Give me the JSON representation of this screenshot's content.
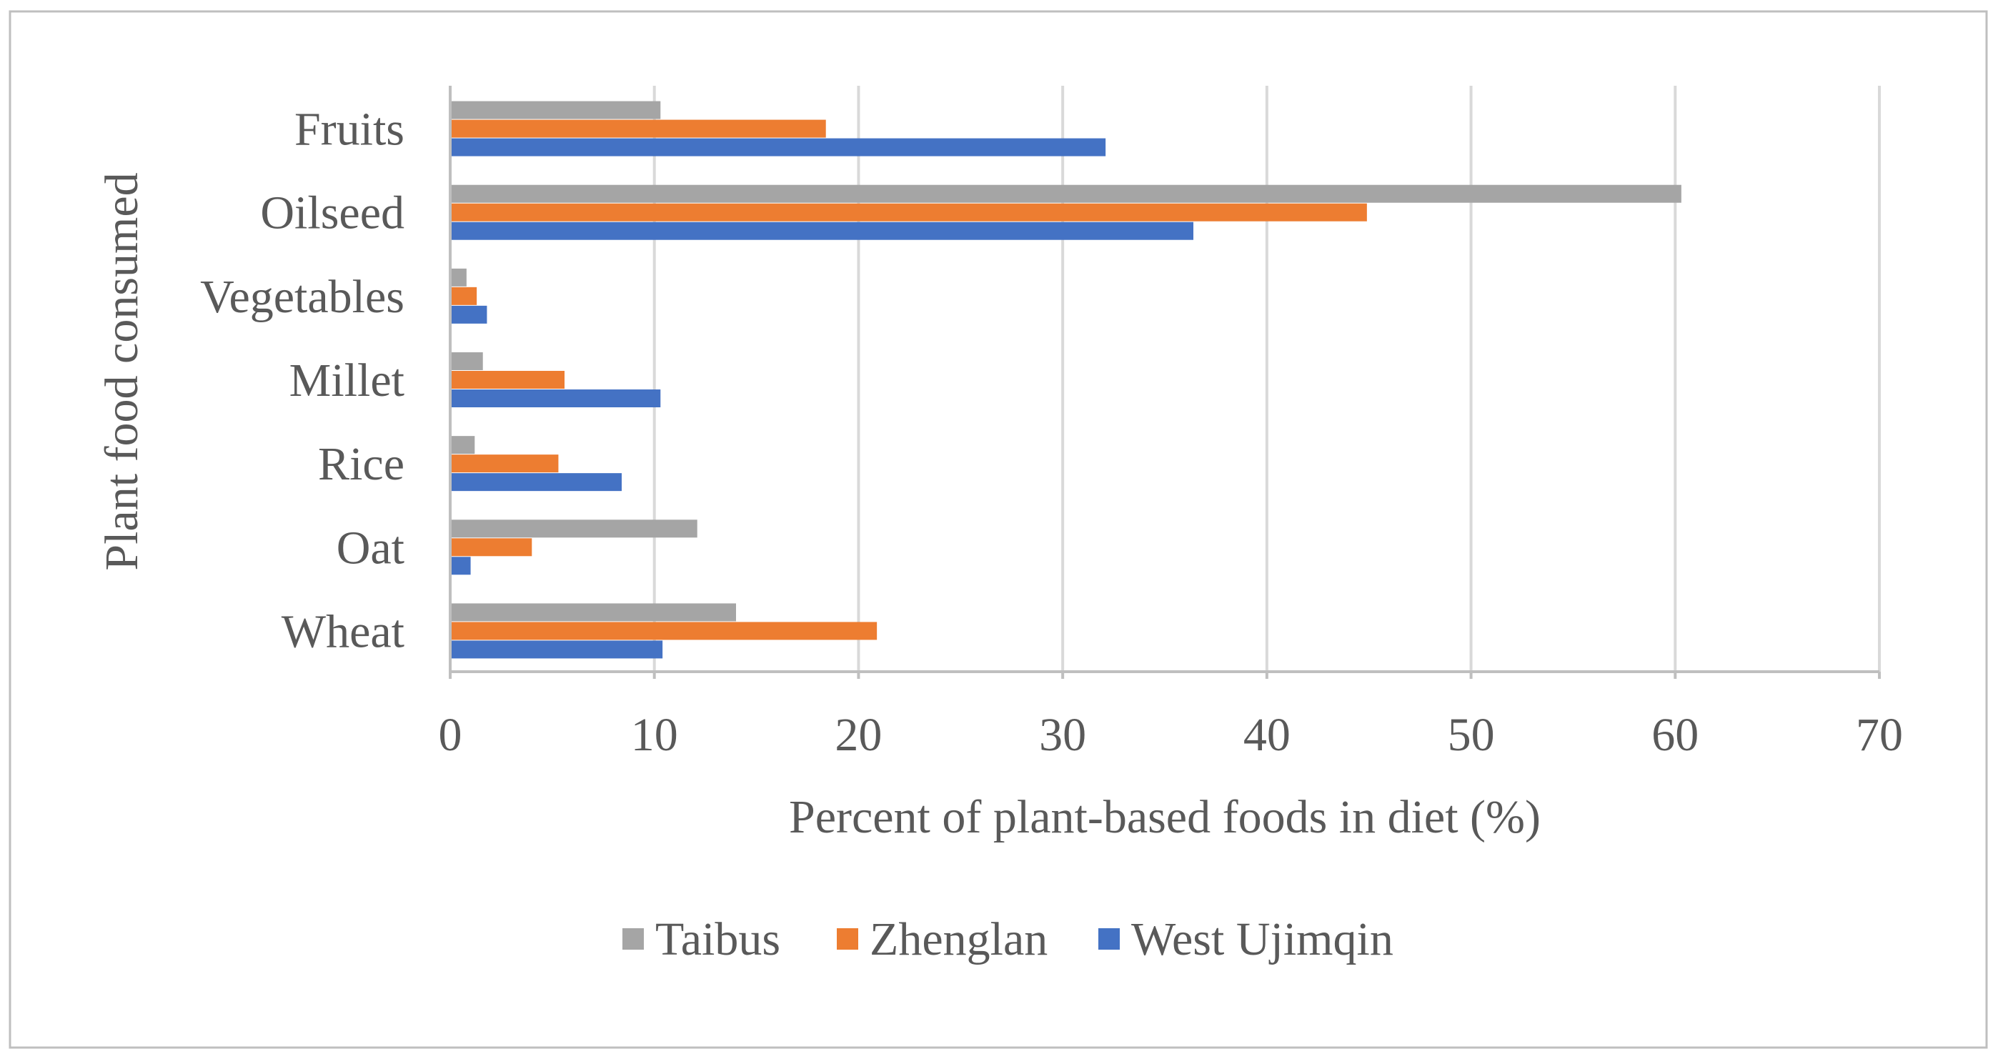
{
  "chart_data": {
    "type": "bar",
    "orientation": "horizontal",
    "title": "",
    "xlabel": "Percent of plant-based foods in diet (%)",
    "ylabel": "Plant food consumed",
    "xlim": [
      0,
      70
    ],
    "xticks": [
      0,
      10,
      20,
      30,
      40,
      50,
      60,
      70
    ],
    "grid": "vertical",
    "legend_position": "bottom",
    "categories": [
      "Fruits",
      "Oilseed",
      "Vegetables",
      "Millet",
      "Rice",
      "Oat",
      "Wheat"
    ],
    "series": [
      {
        "name": "Taibus",
        "color": "#A5A5A5",
        "values": [
          10.3,
          60.3,
          0.8,
          1.6,
          1.2,
          12.1,
          14.0
        ]
      },
      {
        "name": "Zhenglan",
        "color": "#ED7D31",
        "values": [
          18.4,
          44.9,
          1.3,
          5.6,
          5.3,
          4.0,
          20.9
        ]
      },
      {
        "name": "West Ujimqin",
        "color": "#4472C4",
        "values": [
          32.1,
          36.4,
          1.8,
          10.3,
          8.4,
          1.0,
          10.4
        ]
      }
    ]
  }
}
